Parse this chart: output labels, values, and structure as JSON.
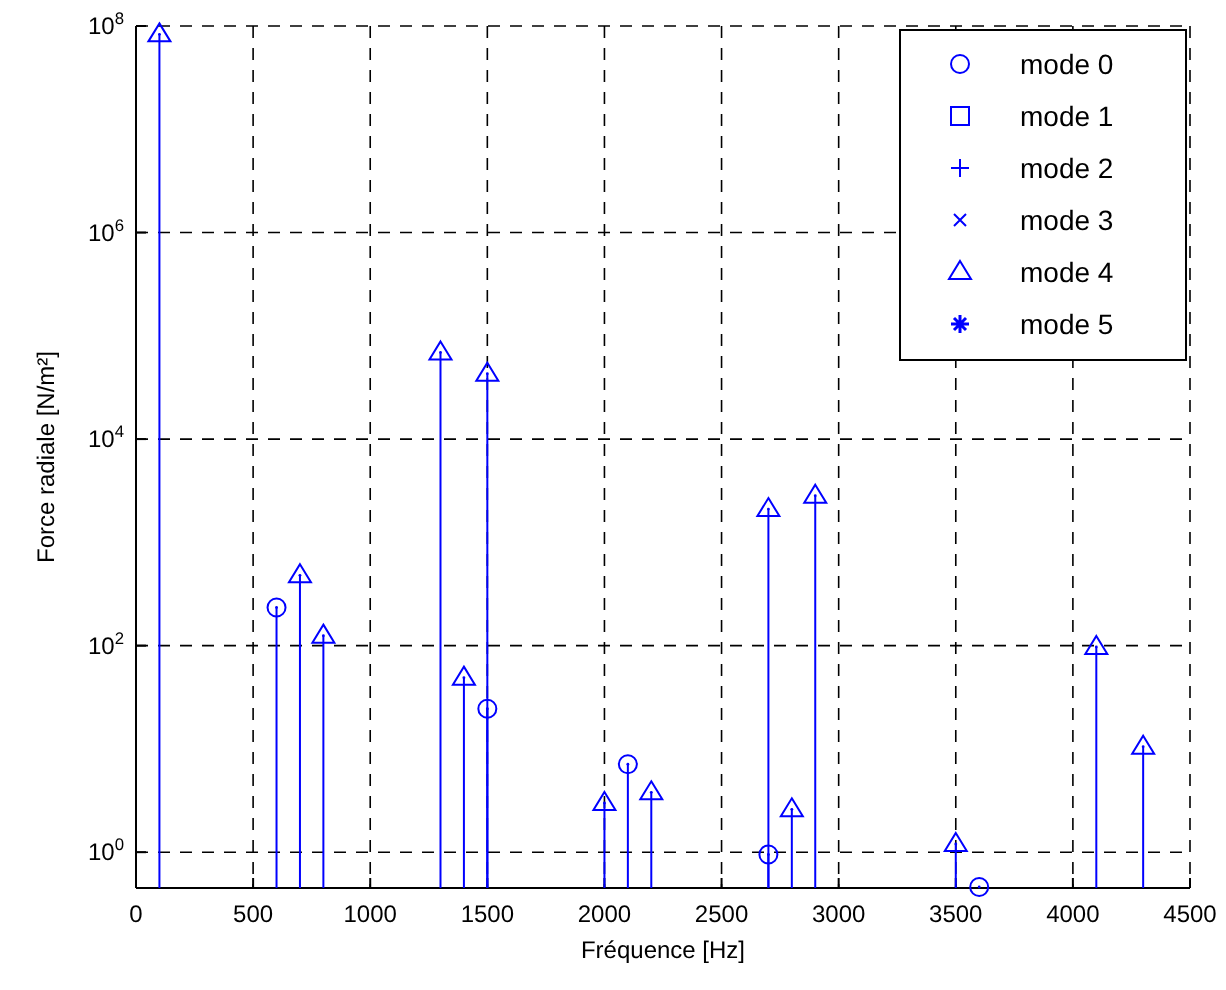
{
  "chart_data": {
    "type": "lollipop",
    "xlabel": "Fréquence [Hz]",
    "ylabel": "Force radiale [N/m²]",
    "log": "y",
    "grid": true,
    "legend": "top right",
    "xlim": [
      0,
      4500
    ],
    "xticks": [
      0,
      500,
      1000,
      1500,
      2000,
      2500,
      3000,
      3500,
      4000,
      4500
    ],
    "ylim": [
      0.45,
      100000000
    ],
    "yticks": [
      {
        "value": 1,
        "label": "10$^{0}$"
      },
      {
        "value": 100,
        "label": "10$^{2}$"
      },
      {
        "value": 10000,
        "label": "10$^{4}$"
      },
      {
        "value": 1000000,
        "label": "10$^{6}$"
      },
      {
        "value": 100000000,
        "label": "10$^{8}$"
      }
    ],
    "series": [
      {
        "name": "mode 0",
        "color": "#0000ff",
        "marker": "circle",
        "x": [
          600,
          1500,
          2100,
          2700,
          3600
        ],
        "values": [
          234,
          24.5,
          7.1,
          0.95,
          0.46
        ]
      },
      {
        "name": "mode 1",
        "color": "#0000ff",
        "marker": "square"
      },
      {
        "name": "mode 2",
        "color": "#0000ff",
        "marker": "cross"
      },
      {
        "name": "mode 3",
        "color": "#0000ff",
        "marker": "x"
      },
      {
        "name": "mode 4",
        "color": "#0000ff",
        "marker": "triangle",
        "x": [
          100,
          700,
          800,
          1300,
          1400,
          1500,
          2000,
          2200,
          2700,
          2800,
          2900,
          3500,
          4100,
          4300
        ],
        "values": [
          83000000,
          480,
          125,
          69000,
          49,
          43000,
          3.0,
          3.8,
          2100,
          2.6,
          2830,
          1.2,
          97,
          10.5
        ]
      },
      {
        "name": "mode 5",
        "color": "#0000ff",
        "marker": "star"
      }
    ]
  }
}
